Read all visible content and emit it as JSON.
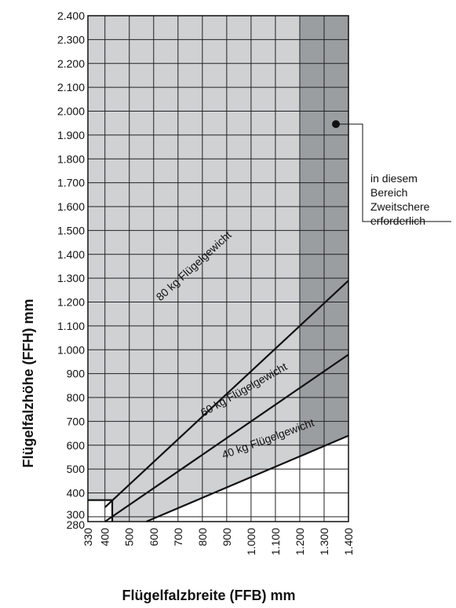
{
  "chart_data": {
    "type": "line",
    "xlabel": "Flügelfalzbreite (FFB) mm",
    "ylabel": "Flügelfalzhöhe (FFH) mm",
    "xlim": [
      330,
      1400
    ],
    "ylim": [
      280,
      2400
    ],
    "x_ticks": [
      330,
      400,
      500,
      600,
      700,
      800,
      900,
      1000,
      1100,
      1200,
      1300,
      1400
    ],
    "x_tick_labels": [
      "330",
      "400",
      "500",
      "600",
      "700",
      "800",
      "900",
      "1.000",
      "1.100",
      "1.200",
      "1.300",
      "1.400"
    ],
    "y_ticks": [
      280,
      300,
      400,
      500,
      600,
      700,
      800,
      900,
      1000,
      1100,
      1200,
      1300,
      1400,
      1500,
      1600,
      1700,
      1800,
      1900,
      2000,
      2100,
      2200,
      2300,
      2400
    ],
    "y_tick_labels": [
      "280",
      "300",
      "400",
      "500",
      "600",
      "700",
      "800",
      "900",
      "1.000",
      "1.100",
      "1.200",
      "1.300",
      "1.400",
      "1.500",
      "1.600",
      "1.700",
      "1.800",
      "1.900",
      "2.000",
      "2.100",
      "2.200",
      "2.300",
      "2.400"
    ],
    "grid": true,
    "series": [
      {
        "name": "80 kg Flügelgewicht",
        "x": [
          400,
          1400
        ],
        "y": [
          340,
          1290
        ]
      },
      {
        "name": "60 kg Flügelgewicht",
        "x": [
          400,
          1400
        ],
        "y": [
          280,
          980
        ]
      },
      {
        "name": "40 kg Flügelgewicht",
        "x": [
          570,
          1400
        ],
        "y": [
          280,
          640
        ]
      }
    ],
    "min_size_boundary": {
      "x": [
        330,
        430,
        430
      ],
      "y": [
        370,
        370,
        280
      ]
    },
    "shaded_regions": [
      {
        "x_from": 1200,
        "x_to": 1400,
        "color": "#9a9ea1",
        "annotation": "in diesem Bereich Zweitschere erforderlich"
      }
    ],
    "annotation_lines": [
      "in diesem",
      "Bereich",
      "Zweitschere",
      "erforderlich"
    ],
    "colors": {
      "light_region": "#cfd1d3",
      "dark_region": "#9a9ea1",
      "grid": "#222222",
      "curves": "#111111"
    }
  }
}
